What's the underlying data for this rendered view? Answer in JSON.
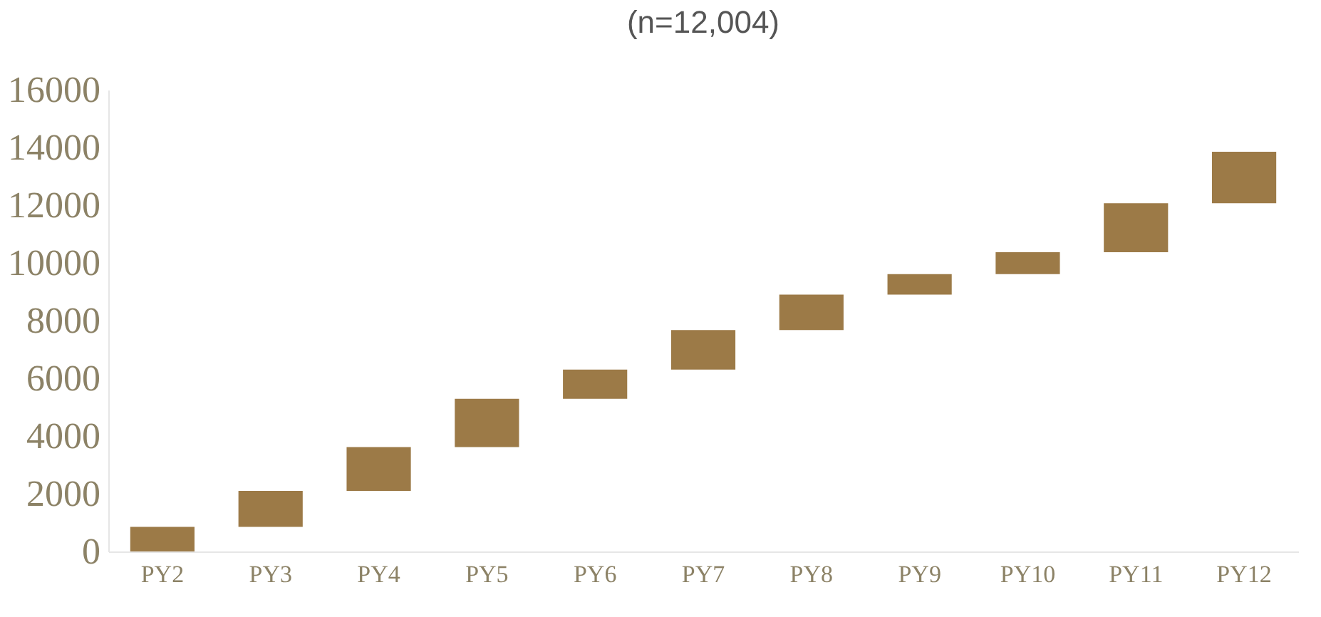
{
  "chart_data": {
    "type": "bar",
    "title": "(n=12,004)",
    "categories": [
      "PY2",
      "PY3",
      "PY4",
      "PY5",
      "PY6",
      "PY7",
      "PY8",
      "PY9",
      "PY10",
      "PY11",
      "PY12"
    ],
    "values": [
      850,
      1250,
      1520,
      1670,
      1010,
      1370,
      1230,
      710,
      760,
      1700,
      1780
    ],
    "base": [
      0,
      850,
      2100,
      3620,
      5290,
      6300,
      7670,
      8900,
      9610,
      10370,
      12070
    ],
    "color": "#9c7a47",
    "ylim": [
      0,
      16000
    ],
    "yticks": [
      0,
      2000,
      4000,
      6000,
      8000,
      10000,
      12000,
      14000,
      16000
    ],
    "grid": false
  }
}
